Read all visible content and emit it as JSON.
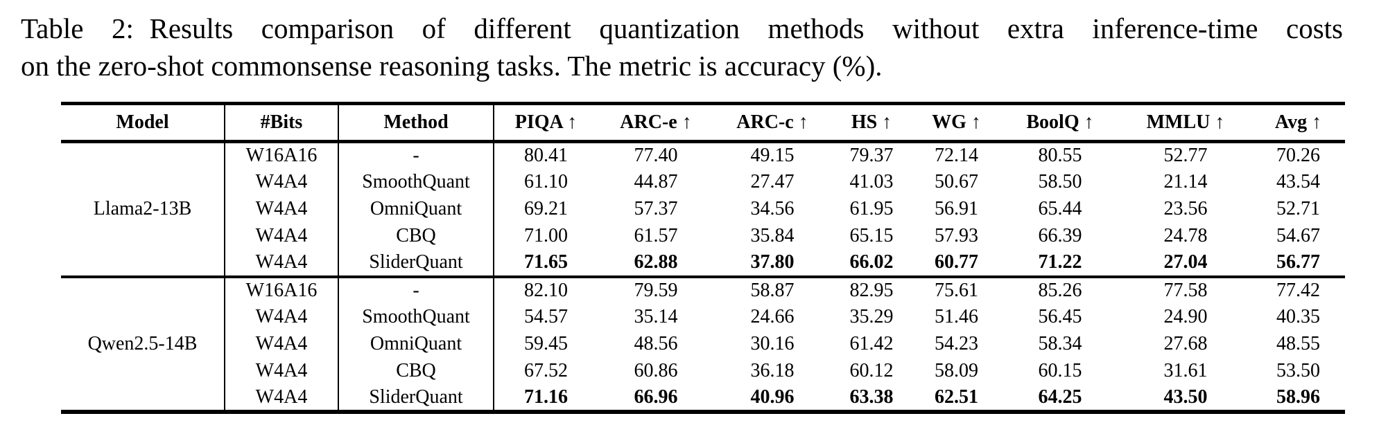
{
  "caption": {
    "label": "Table 2:",
    "line1": "Results comparison of different quantization methods without extra inference-time costs",
    "line2": "on the zero-shot commonsense reasoning tasks. The metric is accuracy (%)."
  },
  "table": {
    "header": {
      "model": "Model",
      "bits": "#Bits",
      "method": "Method",
      "metrics": [
        "PIQA",
        "ARC-e",
        "ARC-c",
        "HS",
        "WG",
        "BoolQ",
        "MMLU",
        "Avg"
      ],
      "arrow": "↑"
    },
    "groups": [
      {
        "model": "Llama2-13B",
        "rows": [
          {
            "bits": "W16A16",
            "method": "-",
            "best": false,
            "values": [
              "80.41",
              "77.40",
              "49.15",
              "79.37",
              "72.14",
              "80.55",
              "52.77",
              "70.26"
            ]
          },
          {
            "bits": "W4A4",
            "method": "SmoothQuant",
            "best": false,
            "values": [
              "61.10",
              "44.87",
              "27.47",
              "41.03",
              "50.67",
              "58.50",
              "21.14",
              "43.54"
            ]
          },
          {
            "bits": "W4A4",
            "method": "OmniQuant",
            "best": false,
            "values": [
              "69.21",
              "57.37",
              "34.56",
              "61.95",
              "56.91",
              "65.44",
              "23.56",
              "52.71"
            ]
          },
          {
            "bits": "W4A4",
            "method": "CBQ",
            "best": false,
            "values": [
              "71.00",
              "61.57",
              "35.84",
              "65.15",
              "57.93",
              "66.39",
              "24.78",
              "54.67"
            ]
          },
          {
            "bits": "W4A4",
            "method": "SliderQuant",
            "best": true,
            "values": [
              "71.65",
              "62.88",
              "37.80",
              "66.02",
              "60.77",
              "71.22",
              "27.04",
              "56.77"
            ]
          }
        ]
      },
      {
        "model": "Qwen2.5-14B",
        "rows": [
          {
            "bits": "W16A16",
            "method": "-",
            "best": false,
            "values": [
              "82.10",
              "79.59",
              "58.87",
              "82.95",
              "75.61",
              "85.26",
              "77.58",
              "77.42"
            ]
          },
          {
            "bits": "W4A4",
            "method": "SmoothQuant",
            "best": false,
            "values": [
              "54.57",
              "35.14",
              "24.66",
              "35.29",
              "51.46",
              "56.45",
              "24.90",
              "40.35"
            ]
          },
          {
            "bits": "W4A4",
            "method": "OmniQuant",
            "best": false,
            "values": [
              "59.45",
              "48.56",
              "30.16",
              "61.42",
              "54.23",
              "58.34",
              "27.68",
              "48.55"
            ]
          },
          {
            "bits": "W4A4",
            "method": "CBQ",
            "best": false,
            "values": [
              "67.52",
              "60.86",
              "36.18",
              "60.12",
              "58.09",
              "60.15",
              "31.61",
              "53.50"
            ]
          },
          {
            "bits": "W4A4",
            "method": "SliderQuant",
            "best": true,
            "values": [
              "71.16",
              "66.96",
              "40.96",
              "63.38",
              "62.51",
              "64.25",
              "43.50",
              "58.96"
            ]
          }
        ]
      }
    ]
  },
  "colors": {
    "text": "#000000",
    "background": "#ffffff",
    "rule": "#000000"
  }
}
